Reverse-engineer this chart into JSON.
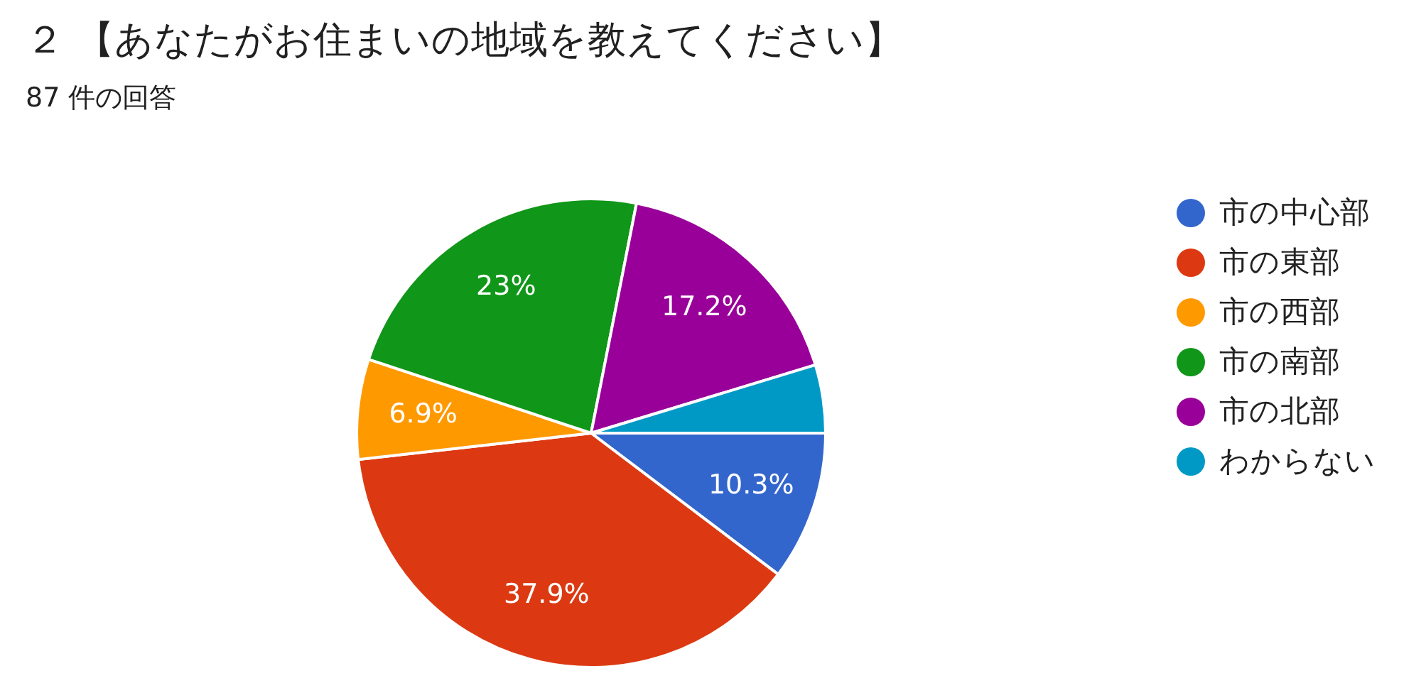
{
  "chart_data": {
    "type": "pie",
    "title": "２ 【あなたがお住まいの地域を教えてください】",
    "subtitle": "87 件の回答",
    "categories": [
      "市の中心部",
      "市の東部",
      "市の西部",
      "市の南部",
      "市の北部",
      "わからない"
    ],
    "values": [
      10.3,
      37.9,
      6.9,
      23,
      17.2,
      4.7
    ],
    "colors": [
      "#3366cc",
      "#dc3912",
      "#ff9900",
      "#109618",
      "#990099",
      "#0099c6"
    ],
    "value_labels": [
      "10.3%",
      "37.9%",
      "6.9%",
      "23%",
      "17.2%",
      null
    ],
    "legend": "right"
  }
}
